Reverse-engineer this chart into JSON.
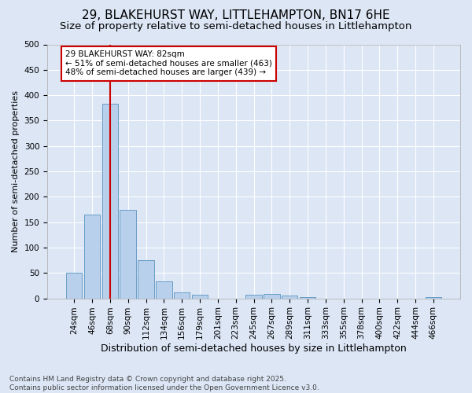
{
  "title": "29, BLAKEHURST WAY, LITTLEHAMPTON, BN17 6HE",
  "subtitle": "Size of property relative to semi-detached houses in Littlehampton",
  "xlabel": "Distribution of semi-detached houses by size in Littlehampton",
  "ylabel": "Number of semi-detached properties",
  "categories": [
    "24sqm",
    "46sqm",
    "68sqm",
    "90sqm",
    "112sqm",
    "134sqm",
    "156sqm",
    "179sqm",
    "201sqm",
    "223sqm",
    "245sqm",
    "267sqm",
    "289sqm",
    "311sqm",
    "333sqm",
    "355sqm",
    "378sqm",
    "400sqm",
    "422sqm",
    "444sqm",
    "466sqm"
  ],
  "values": [
    51,
    165,
    383,
    175,
    75,
    34,
    11,
    7,
    0,
    0,
    7,
    9,
    5,
    3,
    0,
    0,
    0,
    0,
    0,
    0,
    3
  ],
  "bar_color": "#b8d0eb",
  "bar_edge_color": "#6a9ec7",
  "vline_x": 2.0,
  "vline_color": "#cc0000",
  "annotation_text": "29 BLAKEHURST WAY: 82sqm\n← 51% of semi-detached houses are smaller (463)\n48% of semi-detached houses are larger (439) →",
  "annotation_box_color": "#ffffff",
  "annotation_box_edge_color": "#cc0000",
  "footer": "Contains HM Land Registry data © Crown copyright and database right 2025.\nContains public sector information licensed under the Open Government Licence v3.0.",
  "background_color": "#dce6f5",
  "plot_bg_color": "#dce6f5",
  "ylim": [
    0,
    500
  ],
  "yticks": [
    0,
    50,
    100,
    150,
    200,
    250,
    300,
    350,
    400,
    450,
    500
  ],
  "title_fontsize": 11,
  "subtitle_fontsize": 9.5,
  "xlabel_fontsize": 9,
  "ylabel_fontsize": 8,
  "tick_fontsize": 7.5,
  "footer_fontsize": 6.5,
  "annot_fontsize": 7.5
}
